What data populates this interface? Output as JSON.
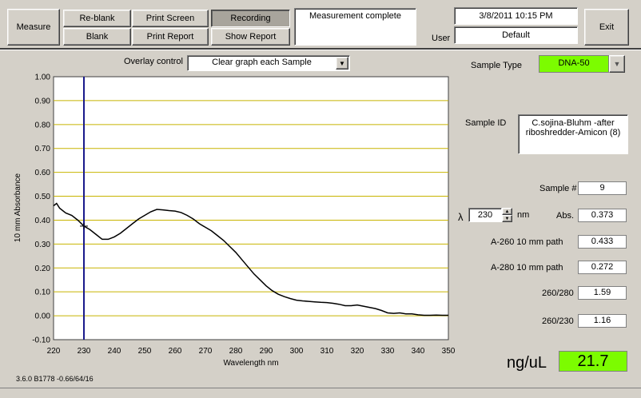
{
  "toolbar": {
    "measure": "Measure",
    "reblank": "Re-blank",
    "blank": "Blank",
    "print_screen": "Print Screen",
    "print_report": "Print Report",
    "recording": "Recording",
    "show_report": "Show Report",
    "status": "Measurement complete",
    "datetime": "3/8/2011  10:15 PM",
    "user_label": "User",
    "user": "Default",
    "exit": "Exit"
  },
  "overlay": {
    "label": "Overlay control",
    "value": "Clear graph each Sample"
  },
  "sample": {
    "type_label": "Sample Type",
    "type_value": "DNA-50",
    "id_label": "Sample ID",
    "id_value": "C.sojina-Bluhm -after riboshredder-Amicon (8)",
    "num_label": "Sample #",
    "num_value": "9",
    "lambda_symbol": "λ",
    "lambda_value": "230",
    "nm": "nm",
    "abs_label": "Abs.",
    "abs_value": "0.373",
    "a260_label": "A-260 10 mm path",
    "a260_value": "0.433",
    "a280_label": "A-280 10 mm path",
    "a280_value": "0.272",
    "r260_280_label": "260/280",
    "r260_280_value": "1.59",
    "r260_230_label": "260/230",
    "r260_230_value": "1.16",
    "conc_unit": "ng/uL",
    "conc_value": "21.7"
  },
  "version": "3.6.0 B1778 -0.66/64/16",
  "colors": {
    "grid": "#c8b400",
    "cursor": "#1a1a8c",
    "sample_type_bg": "#7cfc00",
    "conc_bg": "#7cfc00"
  },
  "chart_data": {
    "type": "line",
    "xlabel": "Wavelength nm",
    "ylabel": "10 mm Absorbance",
    "xlim": [
      220,
      350
    ],
    "ylim": [
      -0.1,
      1.0
    ],
    "xticks": [
      220,
      230,
      240,
      250,
      260,
      270,
      280,
      290,
      300,
      310,
      320,
      330,
      340,
      350
    ],
    "yticks": [
      "-0.10",
      "0.00",
      "0.10",
      "0.20",
      "0.30",
      "0.40",
      "0.50",
      "0.60",
      "0.70",
      "0.80",
      "0.90",
      "1.00"
    ],
    "cursor_x": 230,
    "grid": "horizontal",
    "x": [
      220,
      221,
      222,
      224,
      226,
      228,
      230,
      232,
      234,
      236,
      238,
      240,
      242,
      244,
      246,
      248,
      250,
      252,
      254,
      256,
      258,
      260,
      262,
      264,
      266,
      268,
      270,
      272,
      274,
      276,
      278,
      280,
      282,
      284,
      286,
      288,
      290,
      292,
      294,
      296,
      298,
      300,
      302,
      304,
      306,
      308,
      310,
      312,
      314,
      316,
      318,
      320,
      322,
      324,
      326,
      328,
      330,
      332,
      334,
      336,
      338,
      340,
      342,
      344,
      346,
      348,
      350
    ],
    "y": [
      0.46,
      0.47,
      0.45,
      0.43,
      0.42,
      0.4,
      0.375,
      0.36,
      0.34,
      0.32,
      0.32,
      0.33,
      0.345,
      0.365,
      0.385,
      0.405,
      0.42,
      0.435,
      0.445,
      0.443,
      0.44,
      0.438,
      0.432,
      0.42,
      0.405,
      0.385,
      0.37,
      0.355,
      0.335,
      0.315,
      0.29,
      0.265,
      0.235,
      0.205,
      0.175,
      0.15,
      0.125,
      0.105,
      0.09,
      0.08,
      0.072,
      0.065,
      0.062,
      0.06,
      0.058,
      0.056,
      0.055,
      0.052,
      0.048,
      0.042,
      0.042,
      0.045,
      0.04,
      0.035,
      0.03,
      0.022,
      0.012,
      0.01,
      0.012,
      0.008,
      0.008,
      0.004,
      0.002,
      0.002,
      0.003,
      0.002,
      0.002
    ]
  }
}
